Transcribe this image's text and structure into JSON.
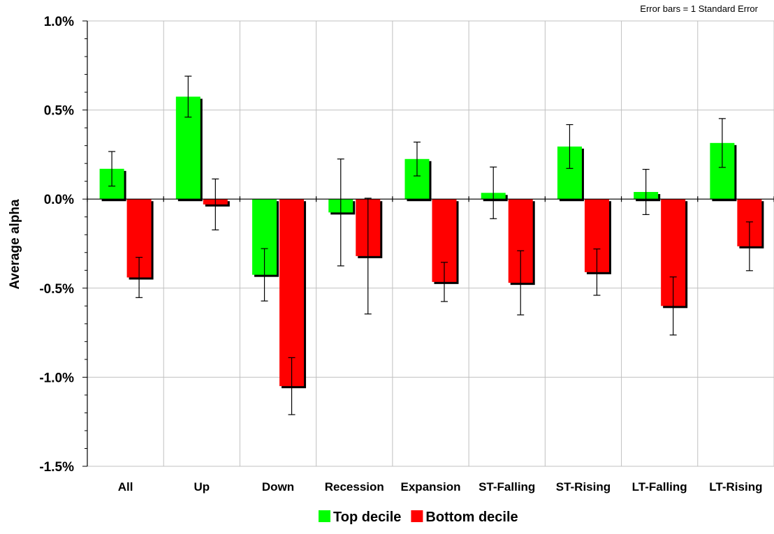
{
  "chart_data": {
    "type": "bar",
    "title": "",
    "note": "Error bars = 1 Standard Error",
    "ylabel": "Average alpha",
    "xlabel": "",
    "ylim": [
      -1.5,
      1.0
    ],
    "yticks": [
      1.0,
      0.5,
      0.0,
      -0.5,
      -1.0,
      -1.5
    ],
    "ytick_labels": [
      "1.0%",
      "0.5%",
      "0.0%",
      "-0.5%",
      "-1.0%",
      "-1.5%"
    ],
    "grid": true,
    "legend_position": "bottom",
    "categories": [
      "All",
      "Up",
      "Down",
      "Recession",
      "Expansion",
      "ST-Falling",
      "ST-Rising",
      "LT-Falling",
      "LT-Rising"
    ],
    "series": [
      {
        "name": "Top decile",
        "color": "#00ff00",
        "values": [
          0.17,
          0.575,
          -0.425,
          -0.075,
          0.225,
          0.035,
          0.295,
          0.04,
          0.315
        ],
        "errors": [
          0.097,
          0.115,
          0.147,
          0.3,
          0.095,
          0.145,
          0.123,
          0.127,
          0.137
        ]
      },
      {
        "name": "Bottom decile",
        "color": "#ff0000",
        "values": [
          -0.44,
          -0.03,
          -1.05,
          -0.32,
          -0.465,
          -0.47,
          -0.41,
          -0.6,
          -0.265
        ],
        "errors": [
          0.113,
          0.143,
          0.16,
          0.325,
          0.11,
          0.18,
          0.13,
          0.163,
          0.137
        ]
      }
    ]
  }
}
